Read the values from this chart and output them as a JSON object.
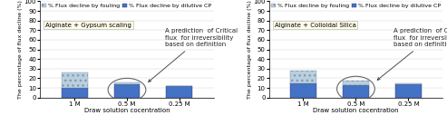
{
  "chart1": {
    "title": "Alginate + Gypsum scaling",
    "categories": [
      "1 M",
      "0.5 M",
      "0.25 M"
    ],
    "fouling": [
      16,
      2,
      0
    ],
    "dilutive_cp": [
      10,
      14,
      12
    ],
    "ellipse_bar": 1
  },
  "chart2": {
    "title": "Alginate + Colloidal Silica",
    "categories": [
      "1 M",
      "0.5 M",
      "0.25 M"
    ],
    "fouling": [
      13,
      5,
      1
    ],
    "dilutive_cp": [
      15,
      13,
      14
    ],
    "ellipse_bar": 1
  },
  "legend_fouling": "% Flux decline by fouling",
  "legend_cp": "% Flux decline by dilutive CP",
  "ylabel": "The percentage of flux decline (%)",
  "xlabel": "Draw solution cocentration",
  "ylim": [
    0,
    100
  ],
  "yticks": [
    0,
    10,
    20,
    30,
    40,
    50,
    60,
    70,
    80,
    90,
    100
  ],
  "color_fouling": "#b8cfe0",
  "color_cp": "#4472c4",
  "annotation_text": "A prediction  of Critical\nflux  for irreversibility\nbased on definition",
  "title_bg": "#fffde8",
  "bg_color": "#ffffff",
  "hatch_fouling": "...",
  "ellipse_color": "#666666",
  "arrow_color": "#333333",
  "text_color": "#222222",
  "grid_color": "#cccccc",
  "annotation_fontsize": 5.0,
  "tick_fontsize": 5.0,
  "label_fontsize": 5.0,
  "legend_fontsize": 5.0,
  "title_fontsize": 5.5
}
